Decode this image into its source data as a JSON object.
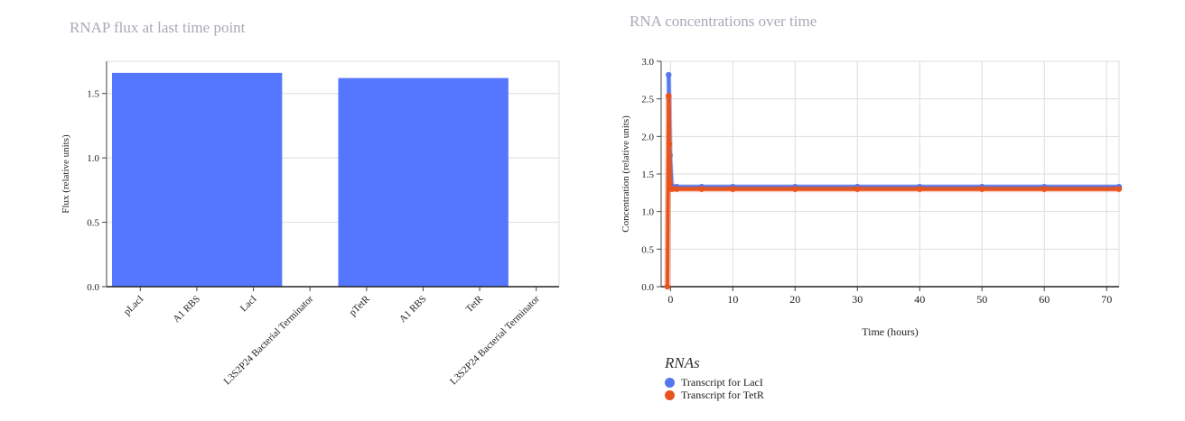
{
  "chart_data": [
    {
      "type": "bar",
      "title": "RNAP flux at last time point",
      "xlabel": "",
      "ylabel": "Flux (relative units)",
      "categories": [
        "pLacI",
        "A1 RBS",
        "LacI",
        "L3S2P24 Bacterial Terminator",
        "pTetR",
        "A1 RBS",
        "TetR",
        "L3S2P24 Bacterial Terminator"
      ],
      "values": [
        1.66,
        1.66,
        1.66,
        0,
        1.62,
        1.62,
        1.62,
        0
      ],
      "ylim": [
        0,
        1.75
      ],
      "yticks": [
        "0.0",
        "0.5",
        "1.0",
        "1.5"
      ],
      "bar_color": "#5577ff",
      "grid": true
    },
    {
      "type": "line",
      "title": "RNA concentrations over time",
      "xlabel": "Time (hours)",
      "ylabel": "Concentration (relative units)",
      "xlim": [
        -1.5,
        72
      ],
      "ylim": [
        0,
        3.0
      ],
      "xticks": [
        "0",
        "10",
        "20",
        "30",
        "40",
        "50",
        "60",
        "70"
      ],
      "yticks": [
        "0.0",
        "0.5",
        "1.0",
        "1.5",
        "2.0",
        "2.5",
        "3.0"
      ],
      "grid": true,
      "series": [
        {
          "name": "Transcript for LacI",
          "color": "#5577ee",
          "x": [
            -0.3,
            -0.1,
            0.2,
            1,
            5,
            10,
            20,
            30,
            40,
            50,
            60,
            72
          ],
          "y": [
            2.82,
            1.75,
            1.34,
            1.33,
            1.33,
            1.33,
            1.33,
            1.33,
            1.33,
            1.33,
            1.33,
            1.33
          ]
        },
        {
          "name": "Transcript for TetR",
          "color": "#e8541e",
          "x": [
            -0.5,
            -0.3,
            -0.2,
            -0.1,
            0,
            0.3,
            1,
            5,
            10,
            20,
            30,
            40,
            50,
            60,
            72
          ],
          "y": [
            0.0,
            2.54,
            1.9,
            1.38,
            1.3,
            1.3,
            1.3,
            1.3,
            1.3,
            1.3,
            1.3,
            1.3,
            1.3,
            1.3,
            1.3
          ]
        }
      ],
      "legend_title": "RNAs",
      "legend_position": "bottom-left"
    }
  ]
}
